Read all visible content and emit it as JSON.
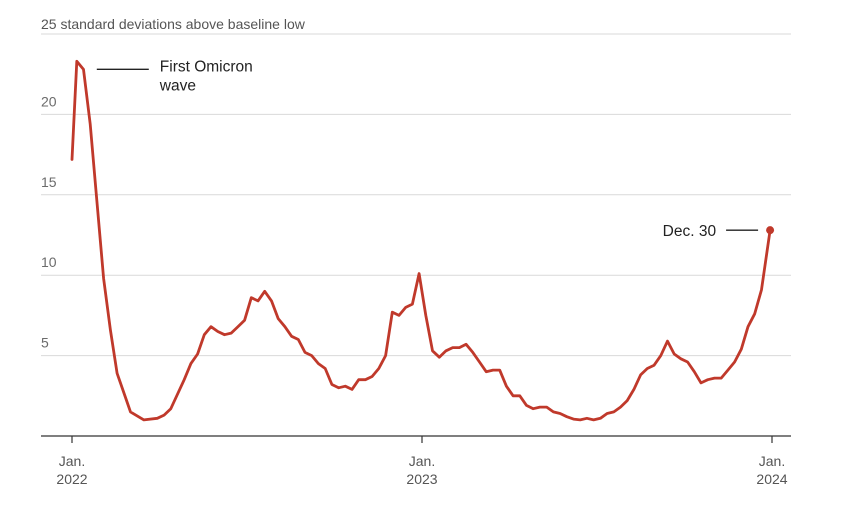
{
  "chart_data": {
    "type": "line",
    "ylabel": "25 standard deviations above baseline low",
    "ylim": [
      0,
      25
    ],
    "yticks": [
      {
        "value": 5,
        "label": "5"
      },
      {
        "value": 10,
        "label": "10"
      },
      {
        "value": 15,
        "label": "15"
      },
      {
        "value": 20,
        "label": "20"
      }
    ],
    "xlim": [
      "2022-01-01",
      "2024-01-01"
    ],
    "xticks": [
      {
        "value": "2022-01-01",
        "line1": "Jan.",
        "line2": "2022"
      },
      {
        "value": "2023-01-01",
        "line1": "Jan.",
        "line2": "2023"
      },
      {
        "value": "2024-01-01",
        "line1": "Jan.",
        "line2": "2024"
      }
    ],
    "grid": true,
    "color": "#c0392b",
    "series": [
      {
        "points": [
          [
            "2022-01-01",
            17.2
          ],
          [
            "2022-01-06",
            23.3
          ],
          [
            "2022-01-13",
            22.8
          ],
          [
            "2022-01-20",
            19.4
          ],
          [
            "2022-01-27",
            14.6
          ],
          [
            "2022-02-03",
            9.8
          ],
          [
            "2022-02-10",
            6.6
          ],
          [
            "2022-02-17",
            3.9
          ],
          [
            "2022-03-03",
            1.5
          ],
          [
            "2022-03-17",
            1.0
          ],
          [
            "2022-03-31",
            1.1
          ],
          [
            "2022-04-07",
            1.3
          ],
          [
            "2022-04-14",
            1.7
          ],
          [
            "2022-04-21",
            2.6
          ],
          [
            "2022-04-28",
            3.5
          ],
          [
            "2022-05-05",
            4.5
          ],
          [
            "2022-05-12",
            5.1
          ],
          [
            "2022-05-19",
            6.3
          ],
          [
            "2022-05-26",
            6.8
          ],
          [
            "2022-06-02",
            6.5
          ],
          [
            "2022-06-09",
            6.3
          ],
          [
            "2022-06-16",
            6.4
          ],
          [
            "2022-06-23",
            6.8
          ],
          [
            "2022-06-30",
            7.2
          ],
          [
            "2022-07-07",
            8.6
          ],
          [
            "2022-07-14",
            8.4
          ],
          [
            "2022-07-21",
            9.0
          ],
          [
            "2022-07-28",
            8.4
          ],
          [
            "2022-08-04",
            7.3
          ],
          [
            "2022-08-11",
            6.8
          ],
          [
            "2022-08-18",
            6.2
          ],
          [
            "2022-08-25",
            6.0
          ],
          [
            "2022-09-01",
            5.2
          ],
          [
            "2022-09-08",
            5.0
          ],
          [
            "2022-09-15",
            4.5
          ],
          [
            "2022-09-22",
            4.2
          ],
          [
            "2022-09-29",
            3.2
          ],
          [
            "2022-10-06",
            3.0
          ],
          [
            "2022-10-13",
            3.1
          ],
          [
            "2022-10-20",
            2.9
          ],
          [
            "2022-10-27",
            3.5
          ],
          [
            "2022-11-03",
            3.5
          ],
          [
            "2022-11-10",
            3.7
          ],
          [
            "2022-11-17",
            4.2
          ],
          [
            "2022-11-24",
            5.0
          ],
          [
            "2022-12-01",
            7.7
          ],
          [
            "2022-12-08",
            7.5
          ],
          [
            "2022-12-15",
            8.0
          ],
          [
            "2022-12-22",
            8.2
          ],
          [
            "2022-12-29",
            10.1
          ],
          [
            "2023-01-05",
            7.5
          ],
          [
            "2023-01-12",
            5.3
          ],
          [
            "2023-01-19",
            4.9
          ],
          [
            "2023-01-26",
            5.3
          ],
          [
            "2023-02-02",
            5.5
          ],
          [
            "2023-02-09",
            5.5
          ],
          [
            "2023-02-16",
            5.7
          ],
          [
            "2023-02-23",
            5.2
          ],
          [
            "2023-03-02",
            4.6
          ],
          [
            "2023-03-09",
            4.0
          ],
          [
            "2023-03-16",
            4.1
          ],
          [
            "2023-03-23",
            4.1
          ],
          [
            "2023-03-30",
            3.1
          ],
          [
            "2023-04-06",
            2.5
          ],
          [
            "2023-04-13",
            2.5
          ],
          [
            "2023-04-20",
            1.9
          ],
          [
            "2023-04-27",
            1.7
          ],
          [
            "2023-05-04",
            1.8
          ],
          [
            "2023-05-11",
            1.8
          ],
          [
            "2023-05-18",
            1.5
          ],
          [
            "2023-05-25",
            1.4
          ],
          [
            "2023-06-01",
            1.2
          ],
          [
            "2023-06-08",
            1.05
          ],
          [
            "2023-06-15",
            1.0
          ],
          [
            "2023-06-22",
            1.1
          ],
          [
            "2023-06-29",
            1.0
          ],
          [
            "2023-07-06",
            1.1
          ],
          [
            "2023-07-13",
            1.4
          ],
          [
            "2023-07-20",
            1.5
          ],
          [
            "2023-07-27",
            1.8
          ],
          [
            "2023-08-03",
            2.2
          ],
          [
            "2023-08-10",
            2.9
          ],
          [
            "2023-08-17",
            3.8
          ],
          [
            "2023-08-24",
            4.2
          ],
          [
            "2023-08-31",
            4.4
          ],
          [
            "2023-09-07",
            5.0
          ],
          [
            "2023-09-14",
            5.9
          ],
          [
            "2023-09-21",
            5.1
          ],
          [
            "2023-09-28",
            4.8
          ],
          [
            "2023-10-05",
            4.6
          ],
          [
            "2023-10-12",
            4.0
          ],
          [
            "2023-10-19",
            3.3
          ],
          [
            "2023-10-26",
            3.5
          ],
          [
            "2023-11-02",
            3.6
          ],
          [
            "2023-11-09",
            3.6
          ],
          [
            "2023-11-16",
            4.1
          ],
          [
            "2023-11-23",
            4.6
          ],
          [
            "2023-11-30",
            5.4
          ],
          [
            "2023-12-07",
            6.8
          ],
          [
            "2023-12-14",
            7.6
          ],
          [
            "2023-12-21",
            9.1
          ],
          [
            "2023-12-30",
            12.8
          ]
        ]
      }
    ],
    "annotations": [
      {
        "text": [
          "First Omicron",
          "wave"
        ],
        "date": "2022-01-06",
        "value": 23.3,
        "side": "right"
      },
      {
        "text": [
          "Dec. 30"
        ],
        "date": "2023-12-30",
        "value": 12.8,
        "side": "left",
        "marker": true
      }
    ]
  }
}
